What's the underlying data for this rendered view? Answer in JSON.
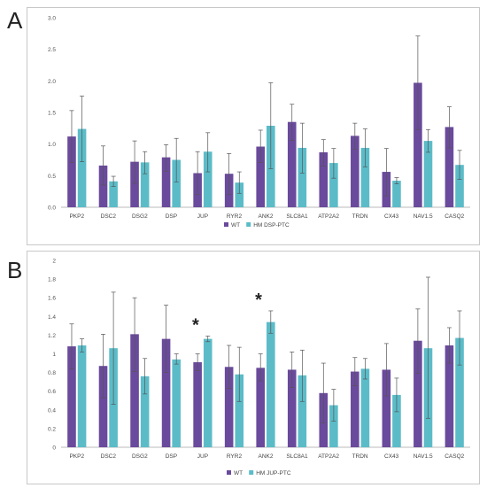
{
  "panels": [
    {
      "letter": "A"
    },
    {
      "letter": "B"
    }
  ],
  "colors": {
    "wt": "#6a4a9c",
    "hm": "#5bbcc8",
    "error": "#555555",
    "grid": "#e4e4e4"
  },
  "chart_data": [
    {
      "type": "bar",
      "title": "",
      "xlabel": "",
      "ylabel": "",
      "ylim": [
        0,
        3.0
      ],
      "yticks": [
        "0.0",
        "0.5",
        "1.0",
        "1.5",
        "2.0",
        "2.5",
        "3.0"
      ],
      "grid": false,
      "legend_position": "bottom-center",
      "categories": [
        "PKP2",
        "DSC2",
        "DSG2",
        "DSP",
        "JUP",
        "RYR2",
        "ANK2",
        "SLC8A1",
        "ATP2A2",
        "TRDN",
        "CX43",
        "NAV1.5",
        "CASQ2"
      ],
      "series": [
        {
          "name": "WT",
          "values": [
            1.12,
            0.66,
            0.72,
            0.79,
            0.54,
            0.53,
            0.96,
            1.35,
            0.87,
            1.13,
            0.56,
            1.97,
            1.27
          ],
          "err_low": [
            0.71,
            0.35,
            0.38,
            0.57,
            0.2,
            0.2,
            0.71,
            1.06,
            0.65,
            0.92,
            0.18,
            1.23,
            0.94
          ],
          "err_high": [
            1.53,
            0.97,
            1.05,
            0.99,
            0.88,
            0.85,
            1.22,
            1.63,
            1.07,
            1.33,
            0.93,
            2.71,
            1.59
          ]
        },
        {
          "name": "HM DSP-PTC",
          "values": [
            1.24,
            0.41,
            0.71,
            0.75,
            0.88,
            0.39,
            1.29,
            0.94,
            0.7,
            0.94,
            0.42,
            1.05,
            0.67
          ],
          "err_low": [
            0.72,
            0.33,
            0.53,
            0.4,
            0.56,
            0.22,
            0.61,
            0.54,
            0.46,
            0.64,
            0.37,
            0.87,
            0.44
          ],
          "err_high": [
            1.76,
            0.49,
            0.88,
            1.09,
            1.18,
            0.56,
            1.97,
            1.33,
            0.93,
            1.24,
            0.47,
            1.23,
            0.9
          ]
        }
      ],
      "annotations": []
    },
    {
      "type": "bar",
      "title": "",
      "xlabel": "",
      "ylabel": "",
      "ylim": [
        0,
        2
      ],
      "yticks": [
        "0",
        "0.2",
        "0.4",
        "0.6",
        "0.8",
        "1",
        "1.2",
        "1.4",
        "1.6",
        "1.8",
        "2"
      ],
      "grid": false,
      "legend_position": "bottom-center",
      "categories": [
        "PKP2",
        "DSC2",
        "DSG2",
        "DSP",
        "JUP",
        "RYR2",
        "ANK2",
        "SLC8A1",
        "ATP2A2",
        "TRDN",
        "CX43",
        "NAV1.5",
        "CASQ2"
      ],
      "series": [
        {
          "name": "WT",
          "values": [
            1.08,
            0.87,
            1.21,
            1.16,
            0.91,
            0.86,
            0.85,
            0.83,
            0.58,
            0.81,
            0.83,
            1.14,
            1.09
          ],
          "err_low": [
            0.84,
            0.53,
            0.81,
            0.8,
            0.82,
            0.63,
            0.71,
            0.64,
            0.26,
            0.66,
            0.55,
            0.79,
            0.9
          ],
          "err_high": [
            1.32,
            1.21,
            1.6,
            1.52,
            1.0,
            1.09,
            1.0,
            1.02,
            0.9,
            0.96,
            1.11,
            1.48,
            1.28
          ]
        },
        {
          "name": "HM JUP-PTC",
          "values": [
            1.09,
            1.06,
            0.76,
            0.94,
            1.16,
            0.78,
            1.34,
            0.77,
            0.45,
            0.84,
            0.56,
            1.06,
            1.17
          ],
          "err_low": [
            1.02,
            0.46,
            0.57,
            0.89,
            1.13,
            0.49,
            1.22,
            0.49,
            0.28,
            0.73,
            0.38,
            0.31,
            0.88
          ],
          "err_high": [
            1.16,
            1.66,
            0.95,
            1.0,
            1.19,
            1.07,
            1.46,
            1.04,
            0.62,
            0.95,
            0.74,
            1.82,
            1.46
          ]
        }
      ],
      "annotations": [
        {
          "category": "JUP",
          "text": "*"
        },
        {
          "category": "ANK2",
          "text": "*"
        }
      ]
    }
  ]
}
